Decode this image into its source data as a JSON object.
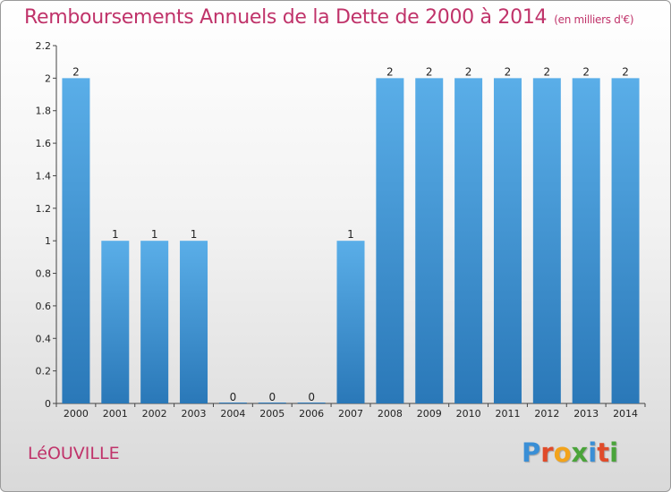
{
  "commune": "LéOUVILLE",
  "logo": {
    "letters": [
      "P",
      "r",
      "o",
      "x",
      "i",
      "t",
      "i"
    ],
    "colors": [
      "#3a8fd6",
      "#e04b2a",
      "#f2a31b",
      "#4aa43a",
      "#3a8fd6",
      "#e04b2a",
      "#4aa43a"
    ]
  },
  "chart_data": {
    "type": "bar",
    "title": "Remboursements Annuels de la Dette de 2000 à 2014",
    "unit_label": "(en milliers d'€)",
    "xlabel": "",
    "ylabel": "",
    "categories": [
      "2000",
      "2001",
      "2002",
      "2003",
      "2004",
      "2005",
      "2006",
      "2007",
      "2008",
      "2009",
      "2010",
      "2011",
      "2012",
      "2013",
      "2014"
    ],
    "values": [
      2,
      1,
      1,
      1,
      0,
      0,
      0,
      1,
      2,
      2,
      2,
      2,
      2,
      2,
      2
    ],
    "value_labels": [
      "2",
      "1",
      "1",
      "1",
      "0",
      "0",
      "0",
      "1",
      "2",
      "2",
      "2",
      "2",
      "2",
      "2",
      "2"
    ],
    "ylim": [
      0,
      2.2
    ],
    "yticks": [
      0,
      0.2,
      0.4,
      0.6,
      0.8,
      1,
      1.2,
      1.4,
      1.6,
      1.8,
      2,
      2.2
    ],
    "ytick_labels": [
      "0",
      "0.2",
      "0.4",
      "0.6",
      "0.8",
      "1",
      "1.2",
      "1.4",
      "1.6",
      "1.8",
      "2",
      "2.2"
    ],
    "bar_color_top": "#5aaee8",
    "bar_color_bottom": "#2a78b8",
    "grid": false
  }
}
